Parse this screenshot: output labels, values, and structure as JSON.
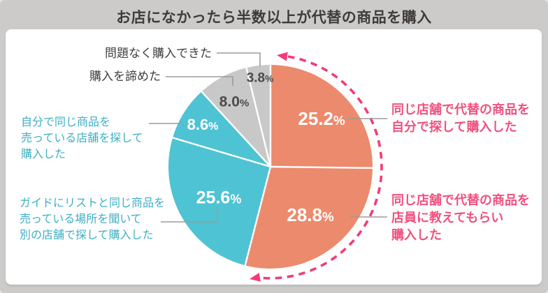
{
  "title": "お店になかったら半数以上が代替の商品を購入",
  "chart_data": {
    "type": "pie",
    "title": "お店になかったら半数以上が代替の商品を購入",
    "direction": "clockwise",
    "start_angle_deg": 0,
    "total_percent": 100,
    "slices": [
      {
        "label": "同じ店舗で代替の商品を自分で探して購入した",
        "value": 25.2,
        "display_value": "25.2%",
        "color": "#ec8a6d",
        "value_label_color": "#ffffff"
      },
      {
        "label": "同じ店舗で代替の商品を店員に教えてもらい購入した",
        "value": 28.8,
        "display_value": "28.8%",
        "color": "#ec8a6d",
        "value_label_color": "#ffffff"
      },
      {
        "label": "ガイドにリストと同じ商品を売っている場所を聞いて別の店舗で探して購入した",
        "value": 25.6,
        "display_value": "25.6%",
        "color": "#4ec3d3",
        "value_label_color": "#ffffff"
      },
      {
        "label": "自分で同じ商品を売っている店舗を探して購入した",
        "value": 8.6,
        "display_value": "8.6%",
        "color": "#4ec3d3",
        "value_label_color": "#ffffff"
      },
      {
        "label": "購入を諦めた",
        "value": 8.0,
        "display_value": "8.0%",
        "color": "#c8c8c8",
        "value_label_color": "#4b4b4b"
      },
      {
        "label": "問題なく購入できた",
        "value": 3.8,
        "display_value": "3.8%",
        "color": "#c8c8c8",
        "value_label_color": "#4b4b4b"
      }
    ],
    "annotation": {
      "type": "dashed-arc-double-arrow",
      "color": "#f43b76",
      "covers_slices": [
        "25.2%",
        "28.8%"
      ],
      "covered_total_percent": 54.0
    },
    "legend_position": "callouts",
    "colors": {
      "alt_purchase": "#ec8a6d",
      "other_store": "#4ec3d3",
      "no_purchase": "#c8c8c8",
      "accent_pink": "#f43b76",
      "connector_gray": "#9b9b98"
    }
  },
  "callouts": {
    "no_problem": {
      "text": "問題なく購入できた"
    },
    "gave_up": {
      "text": "購入を諦めた"
    },
    "self_other_store": {
      "text": "自分で同じ商品を\n売っている店舗を探して\n購入した"
    },
    "guide_other_store": {
      "text": "ガイドにリストと同じ商品を\n売っている場所を聞いて\n別の店舗で探して購入した"
    },
    "self_alt": {
      "text": "同じ店舗で代替の商品を\n自分で探して購入した"
    },
    "staff_alt": {
      "text": "同じ店舗で代替の商品を\n店員に教えてもらい\n購入した"
    }
  }
}
